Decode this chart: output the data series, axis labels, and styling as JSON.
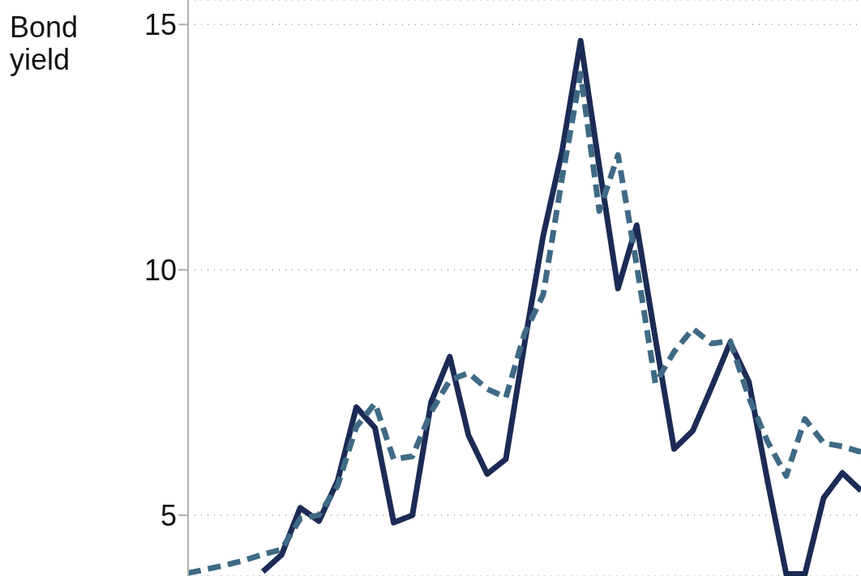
{
  "chart_data": {
    "type": "line",
    "ylabel": "Bond yield",
    "categories": [
      null,
      null,
      null,
      null,
      null,
      null,
      null,
      null,
      null,
      null,
      null,
      null,
      null,
      null,
      null,
      null,
      null,
      null,
      null,
      null,
      null,
      null,
      null,
      null,
      null,
      null,
      null,
      null,
      null,
      null,
      null,
      null,
      null,
      null,
      null,
      null,
      null
    ],
    "ylim": [
      3.76,
      15.5
    ],
    "yticks": [
      5,
      10,
      15
    ],
    "grid": "y",
    "series": [
      {
        "color": "#1c2b55",
        "line_style": "solid",
        "values": [
          null,
          null,
          null,
          null,
          3.85,
          4.19,
          5.15,
          4.88,
          5.7,
          7.2,
          6.78,
          4.85,
          5.0,
          7.3,
          8.23,
          6.63,
          5.84,
          6.14,
          8.5,
          10.7,
          12.4,
          14.67,
          12.1,
          9.62,
          10.91,
          8.6,
          6.35,
          6.72,
          7.6,
          8.52,
          7.72,
          5.7,
          3.8,
          3.8,
          5.35,
          5.86,
          5.5
        ]
      },
      {
        "color": "#3f6a85",
        "line_style": "dashed",
        "values": [
          3.82,
          3.9,
          3.98,
          4.08,
          4.2,
          4.3,
          4.93,
          5.0,
          5.6,
          6.8,
          7.28,
          6.14,
          6.2,
          7.1,
          7.75,
          7.9,
          7.57,
          7.4,
          8.7,
          9.5,
          11.85,
          14.0,
          11.2,
          12.34,
          10.1,
          7.69,
          8.33,
          8.8,
          8.5,
          8.55,
          7.4,
          6.5,
          5.8,
          6.96,
          6.47,
          6.4,
          6.29
        ]
      }
    ]
  }
}
